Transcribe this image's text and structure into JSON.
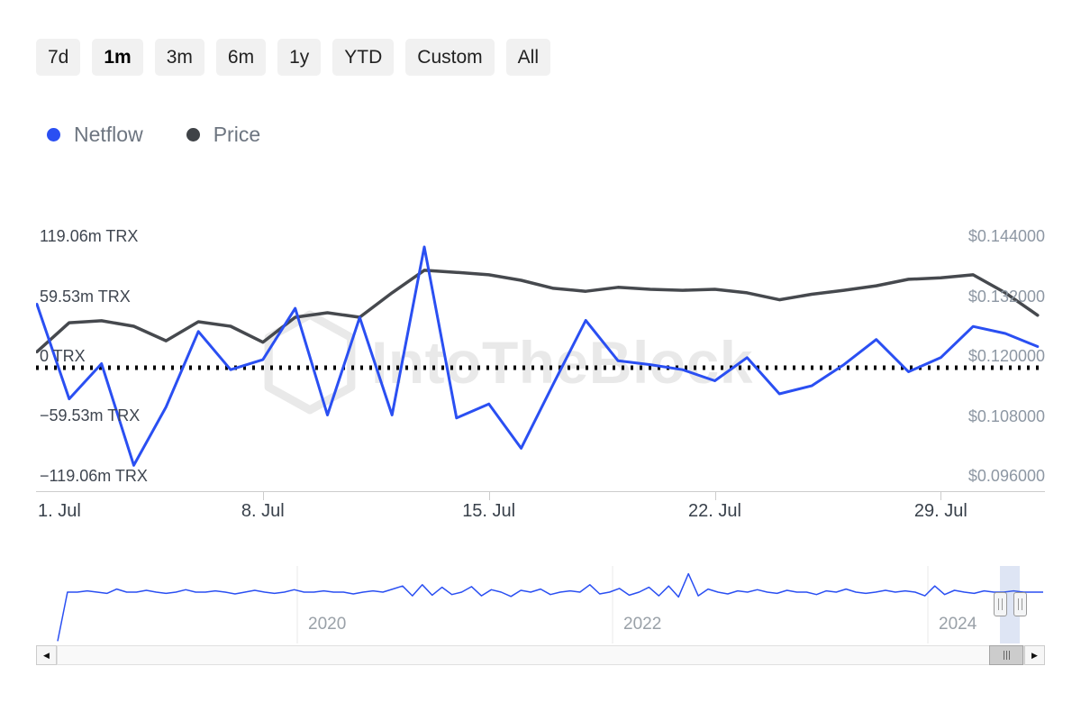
{
  "range_selector": {
    "buttons": [
      {
        "label": "7d",
        "selected": false
      },
      {
        "label": "1m",
        "selected": true
      },
      {
        "label": "3m",
        "selected": false
      },
      {
        "label": "6m",
        "selected": false
      },
      {
        "label": "1y",
        "selected": false
      },
      {
        "label": "YTD",
        "selected": false
      },
      {
        "label": "Custom",
        "selected": false
      },
      {
        "label": "All",
        "selected": false
      }
    ]
  },
  "legend": {
    "items": [
      {
        "label": "Netflow",
        "color": "#2a4ff2"
      },
      {
        "label": "Price",
        "color": "#3f4347"
      }
    ]
  },
  "watermark": {
    "text": "IntoTheBlock"
  },
  "scrollbar": {
    "left_arrow": "◀",
    "right_arrow": "▶"
  },
  "chart_data": [
    {
      "type": "line",
      "title": "",
      "x_unit": "day of month (July)",
      "x_days": [
        1,
        2,
        3,
        4,
        5,
        6,
        7,
        8,
        9,
        10,
        11,
        12,
        13,
        14,
        15,
        16,
        17,
        18,
        19,
        20,
        21,
        22,
        23,
        24,
        25,
        26,
        27,
        28,
        29,
        30,
        31,
        32
      ],
      "series": [
        {
          "name": "Netflow",
          "unit": "m TRX",
          "color": "#2a4ff2",
          "values": [
            63,
            -31,
            4,
            -97,
            -39,
            36,
            -2,
            8,
            59,
            -47,
            50,
            -47,
            120,
            -50,
            -36,
            -80,
            -16,
            47,
            7,
            3,
            -2,
            -13,
            10,
            -26,
            -18,
            3,
            28,
            -4,
            10,
            41,
            34,
            21
          ]
        },
        {
          "name": "Price",
          "unit": "USD",
          "color": "#46494e",
          "values": [
            0.1232,
            0.129,
            0.1294,
            0.1283,
            0.1254,
            0.1292,
            0.1283,
            0.1251,
            0.1301,
            0.131,
            0.1301,
            0.135,
            0.1395,
            0.1391,
            0.1386,
            0.1375,
            0.1359,
            0.1353,
            0.1361,
            0.1357,
            0.1355,
            0.1357,
            0.135,
            0.1336,
            0.1347,
            0.1355,
            0.1364,
            0.1377,
            0.138,
            0.1386,
            0.135,
            0.1305
          ]
        }
      ],
      "yaxis_left": {
        "tick_labels": [
          "119.06m TRX",
          "59.53m TRX",
          "0 TRX",
          "−59.53m TRX",
          "−119.06m TRX"
        ],
        "tick_values": [
          119.06,
          59.53,
          0,
          -59.53,
          -119.06
        ],
        "range": [
          -119.06,
          119.06
        ]
      },
      "yaxis_right": {
        "tick_labels": [
          "$0.144000",
          "$0.132000",
          "$0.120000",
          "$0.108000",
          "$0.096000"
        ],
        "tick_values": [
          0.144,
          0.132,
          0.12,
          0.108,
          0.096
        ],
        "range": [
          0.096,
          0.144
        ]
      },
      "xaxis": {
        "tick_labels": [
          "1. Jul",
          "8. Jul",
          "15. Jul",
          "22. Jul",
          "29. Jul"
        ],
        "tick_values": [
          1,
          8,
          15,
          22,
          29
        ]
      },
      "plotline": {
        "value": 0,
        "style": "dotted",
        "color": "#000000"
      },
      "legend_position": "top-left",
      "grid": "off"
    },
    {
      "type": "line",
      "role": "navigator",
      "series": [
        {
          "name": "Netflow (all time)",
          "color": "#2a4ff2",
          "values": [
            -80,
            0,
            0,
            2,
            0,
            -2,
            5,
            0,
            0,
            3,
            0,
            -2,
            0,
            4,
            0,
            0,
            2,
            0,
            -3,
            0,
            3,
            0,
            -2,
            0,
            4,
            0,
            0,
            2,
            0,
            0,
            -3,
            0,
            2,
            0,
            5,
            10,
            -6,
            12,
            -5,
            8,
            -4,
            0,
            9,
            -6,
            4,
            0,
            -7,
            3,
            0,
            5,
            -4,
            0,
            2,
            0,
            12,
            -3,
            0,
            6,
            -5,
            0,
            8,
            -6,
            10,
            -8,
            30,
            -6,
            5,
            0,
            -3,
            2,
            0,
            4,
            0,
            -2,
            3,
            0,
            0,
            -4,
            2,
            0,
            5,
            0,
            -2,
            0,
            3,
            0,
            2,
            0,
            -6,
            10,
            -4,
            3,
            0,
            -2,
            2,
            0,
            0,
            2,
            0,
            0,
            0
          ]
        }
      ],
      "xaxis": {
        "tick_labels": [
          "2020",
          "2022",
          "2024"
        ]
      },
      "selection": {
        "range": "1m",
        "position": "right"
      }
    }
  ]
}
